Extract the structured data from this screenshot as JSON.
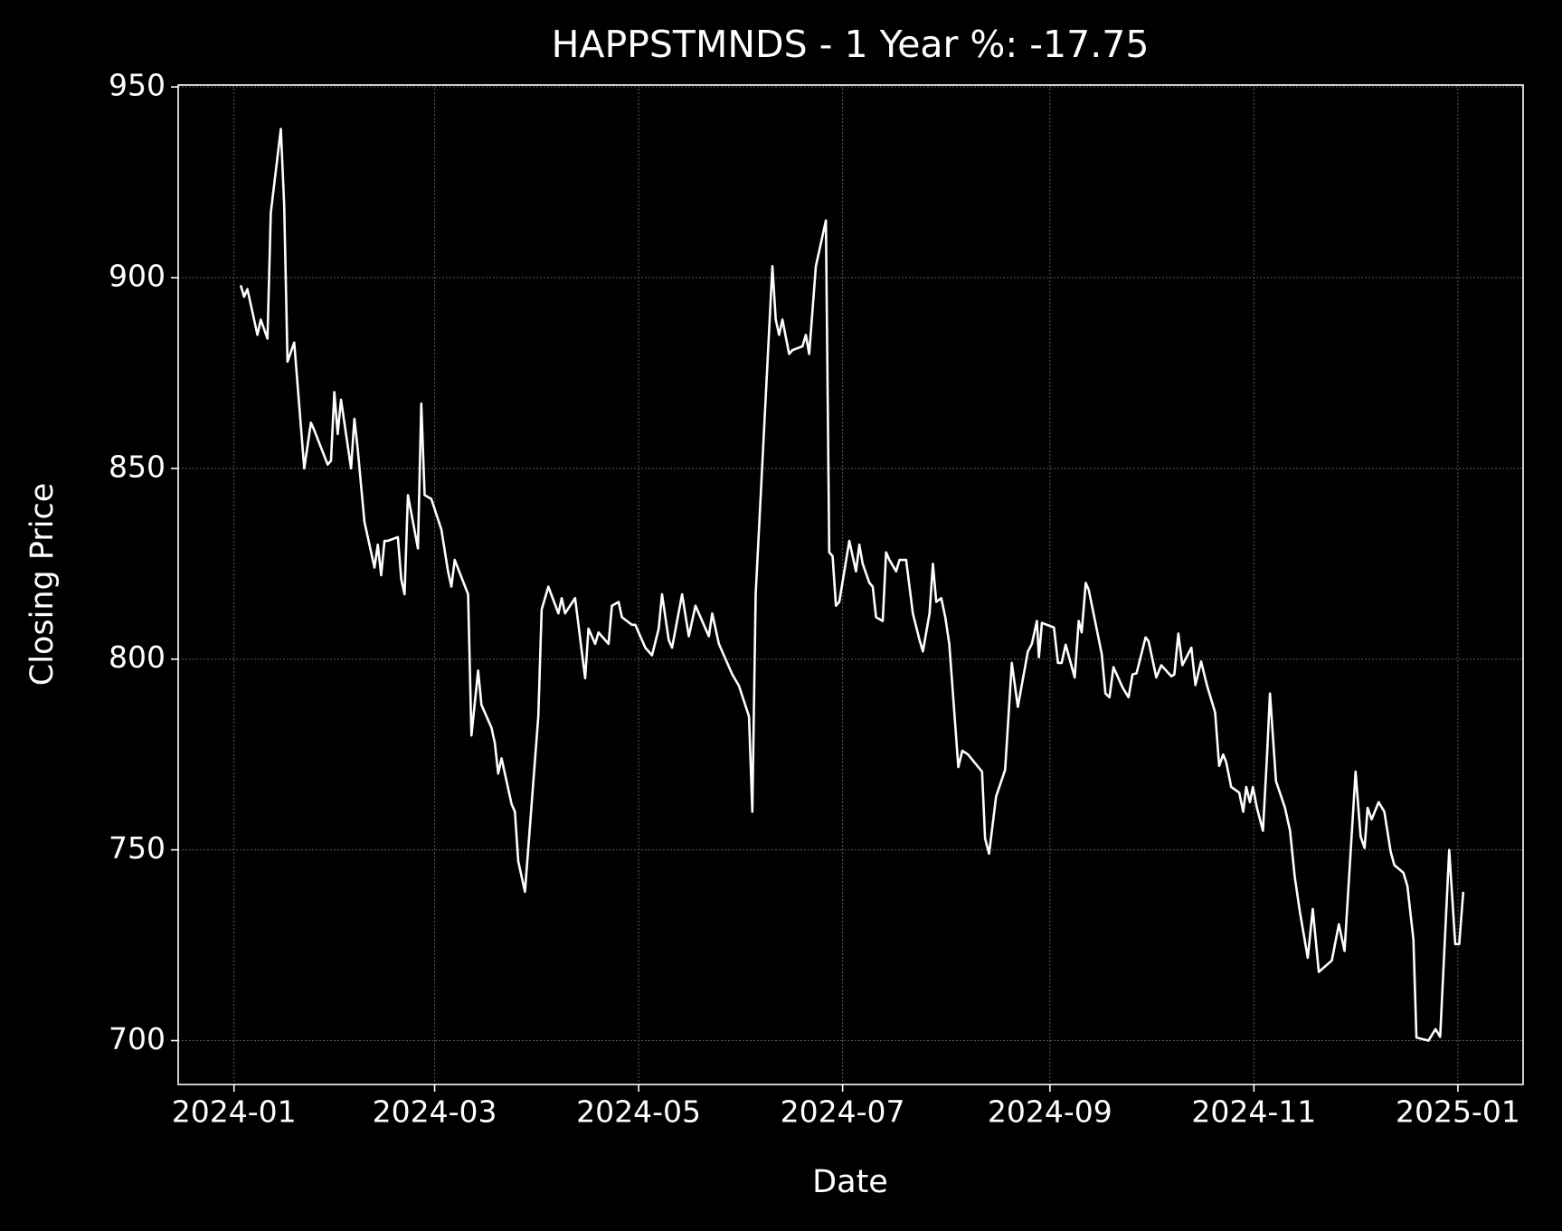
{
  "chart_data": {
    "type": "line",
    "title": "HAPPSTMNDS - 1 Year %: -17.75",
    "x_label": "Date",
    "y_label": "Closing Price",
    "color": "#ffffff",
    "grid": true,
    "xlim": [
      -16.7,
      385.5
    ],
    "xticks": [
      {
        "value": 0,
        "label": "2024-01"
      },
      {
        "value": 60,
        "label": "2024-03"
      },
      {
        "value": 121,
        "label": "2024-05"
      },
      {
        "value": 182,
        "label": "2024-07"
      },
      {
        "value": 244,
        "label": "2024-09"
      },
      {
        "value": 305,
        "label": "2024-11"
      },
      {
        "value": 366,
        "label": "2025-01"
      }
    ],
    "ylim": [
      688.5,
      950.5
    ],
    "yticks": [
      700,
      750,
      800,
      850,
      900,
      950
    ],
    "x": [
      2,
      3,
      4,
      7,
      8,
      10,
      11,
      14,
      15,
      16,
      18,
      21,
      23,
      24,
      28,
      29,
      30,
      31,
      32,
      35,
      36,
      37,
      39,
      42,
      43,
      44,
      45,
      46,
      49,
      50,
      51,
      52,
      55,
      56,
      57,
      59,
      62,
      64,
      65,
      66,
      70,
      71,
      73,
      74,
      77,
      78,
      79,
      80,
      83,
      84,
      85,
      87,
      91,
      92,
      94,
      97,
      98,
      99,
      102,
      105,
      106,
      108,
      109,
      112,
      113,
      115,
      116,
      119,
      120,
      123,
      125,
      127,
      128,
      130,
      131,
      134,
      136,
      138,
      142,
      143,
      145,
      149,
      151,
      154,
      155,
      156,
      161,
      162,
      163,
      164,
      166,
      167,
      170,
      171,
      172,
      174,
      177,
      178,
      179,
      180,
      181,
      184,
      185,
      186,
      187,
      188,
      190,
      191,
      192,
      194,
      195,
      196,
      198,
      199,
      201,
      203,
      205,
      206,
      208,
      209,
      210,
      211.5,
      212.7,
      213.9,
      216.6,
      217.8,
      219.5,
      223.7,
      224.6,
      225.8,
      227.9,
      230.6,
      232.6,
      234.4,
      237.4,
      238.6,
      240.1,
      240.7,
      241.6,
      245.2,
      246.4,
      247.5,
      248.7,
      251.4,
      252.6,
      253.5,
      254.7,
      255.6,
      259.5,
      260.6,
      261.8,
      263,
      265.7,
      267.5,
      268.7,
      269.9,
      272.6,
      273.5,
      275.8,
      277.3,
      280.3,
      281.2,
      282.4,
      283.6,
      286.3,
      287.5,
      289.2,
      291,
      293.4,
      294.6,
      295.8,
      296.7,
      298.2,
      300.6,
      301.8,
      302.7,
      303.8,
      304.7,
      305.9,
      307.7,
      308.9,
      309.8,
      311.6,
      314.3,
      315.8,
      317.2,
      318.7,
      321.1,
      322.6,
      324.4,
      328.3,
      330.4,
      332.1,
      335.4,
      336.9,
      338.1,
      339,
      340.2,
      342.3,
      344,
      345.9,
      347,
      349.7,
      350.9,
      352.7,
      353.6,
      357.2,
      359.3,
      360.7,
      363.4,
      365.2,
      366.4,
      367.6
    ],
    "values": [
      898,
      895,
      897,
      885,
      889,
      884,
      917,
      939,
      919,
      878,
      883,
      850,
      862,
      860,
      851,
      852,
      870,
      859,
      868,
      850,
      863,
      855,
      836,
      824,
      830,
      822,
      831,
      831,
      832,
      821,
      817,
      843,
      829,
      867,
      843,
      842,
      834,
      823,
      819,
      826,
      817,
      780,
      797,
      788,
      782,
      778,
      770,
      774,
      762,
      760,
      747,
      739,
      785,
      813,
      819,
      812,
      816,
      812,
      816,
      795,
      808,
      804,
      807,
      804,
      814,
      815,
      811,
      809,
      809,
      803,
      801,
      808,
      817,
      805,
      803,
      817,
      806,
      814,
      806,
      812,
      804,
      796,
      793,
      785,
      760,
      817,
      903,
      889,
      885,
      889,
      880,
      881,
      882,
      885,
      880,
      903,
      915,
      828,
      827,
      814,
      815,
      831,
      827,
      823,
      830,
      825,
      820,
      819,
      811,
      810,
      828,
      826,
      823,
      826,
      826,
      812,
      805,
      802,
      812,
      825,
      815,
      816,
      811,
      804,
      771.7,
      776,
      775,
      770.5,
      753,
      749,
      764,
      771,
      799,
      787.5,
      802,
      804,
      810,
      800.5,
      809.5,
      808.3,
      799,
      799,
      803.8,
      795.2,
      810,
      807,
      820,
      818.2,
      801.3,
      791,
      790,
      797.9,
      792.6,
      790,
      796,
      796.3,
      805.7,
      804.7,
      795.2,
      798.4,
      795.5,
      796,
      806.7,
      798.4,
      803,
      793.2,
      799.4,
      793,
      786,
      772,
      775,
      773,
      766.5,
      765,
      760,
      766.5,
      762.5,
      766.5,
      761,
      755,
      774.4,
      791,
      768,
      761,
      755,
      743,
      734,
      721.7,
      734.5,
      718,
      721,
      730.5,
      723.5,
      770.5,
      753.5,
      750.5,
      761,
      758,
      762.5,
      760,
      749.5,
      746,
      744,
      740.5,
      726.5,
      700.8,
      700,
      703,
      701,
      750,
      725.3,
      725.3,
      739
    ]
  }
}
